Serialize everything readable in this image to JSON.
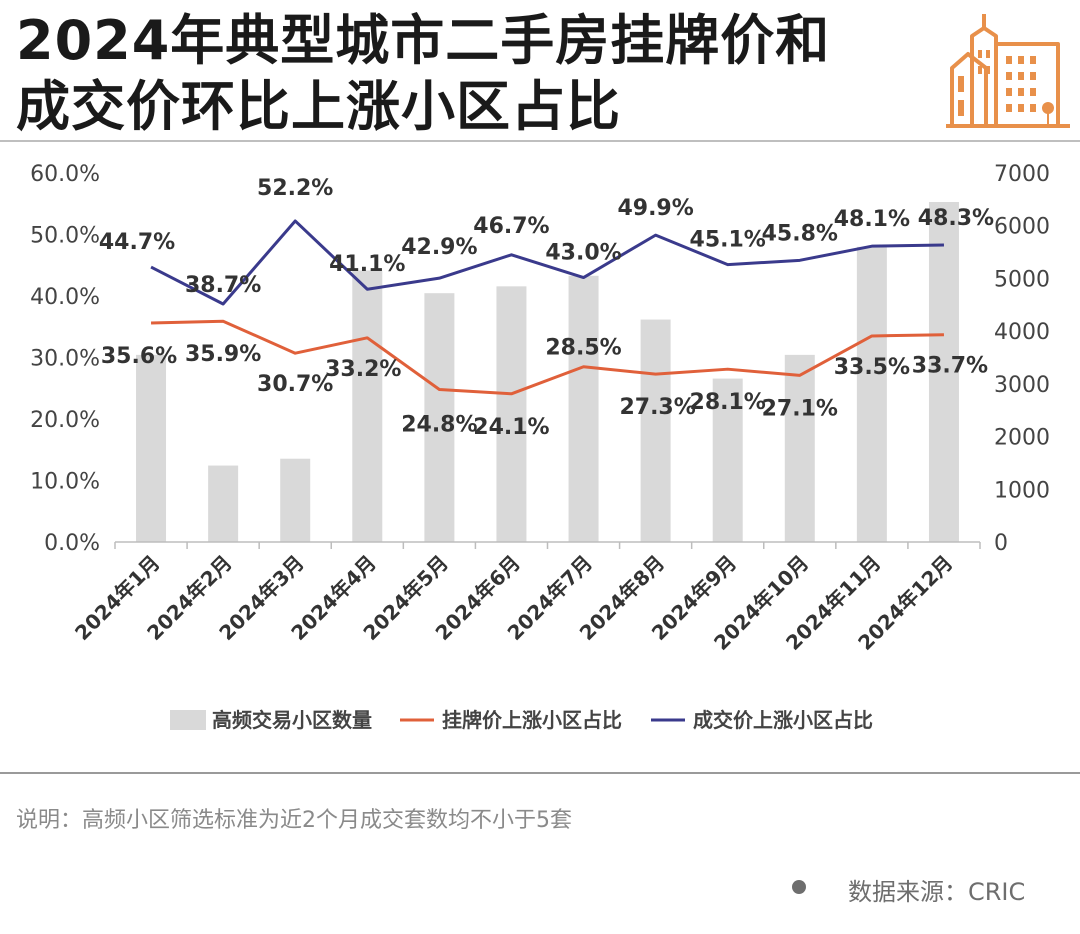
{
  "header": {
    "title_line1": "2024年典型城市二手房挂牌价和",
    "title_line2": "成交价环比上涨小区占比"
  },
  "logo": {
    "icon": "building-icon",
    "color": "#E8904A"
  },
  "note": "说明：高频小区筛选标准为近2个月成交套数均不小于5套",
  "source": "数据来源：CRIC",
  "chart_data": {
    "type": "bar",
    "categories": [
      "2024年1月",
      "2024年2月",
      "2024年3月",
      "2024年4月",
      "2024年5月",
      "2024年6月",
      "2024年7月",
      "2024年8月",
      "2024年9月",
      "2024年10月",
      "2024年11月",
      "2024年12月"
    ],
    "left_axis": {
      "ylim": [
        0,
        60
      ],
      "ticks": [
        "0.0%",
        "10.0%",
        "20.0%",
        "30.0%",
        "40.0%",
        "50.0%",
        "60.0%"
      ]
    },
    "right_axis": {
      "ylim": [
        0,
        7000
      ],
      "ticks": [
        "0",
        "1000",
        "2000",
        "3000",
        "4000",
        "5000",
        "6000",
        "7000"
      ]
    },
    "series": [
      {
        "name": "高频交易小区数量",
        "kind": "bar",
        "axis": "right",
        "color": "#d9d9d9",
        "values": [
          3550,
          1450,
          1580,
          5150,
          4720,
          4850,
          5050,
          4220,
          3100,
          3550,
          5600,
          6450
        ]
      },
      {
        "name": "挂牌价上涨小区占比",
        "kind": "line",
        "axis": "left",
        "color": "#E0603A",
        "values": [
          35.6,
          35.9,
          30.7,
          33.2,
          24.8,
          24.1,
          28.5,
          27.3,
          28.1,
          27.1,
          33.5,
          33.7
        ],
        "labels": [
          "35.6%",
          "35.9%",
          "30.7%",
          "33.2%",
          "24.8%",
          "24.1%",
          "28.5%",
          "27.3%",
          "28.1%",
          "27.1%",
          "33.5%",
          "33.7%"
        ]
      },
      {
        "name": "成交价上涨小区占比",
        "kind": "line",
        "axis": "left",
        "color": "#3A3A8C",
        "values": [
          44.7,
          38.7,
          52.2,
          41.1,
          42.9,
          46.7,
          43.0,
          49.9,
          45.1,
          45.8,
          48.1,
          48.3
        ],
        "labels": [
          "44.7%",
          "38.7%",
          "52.2%",
          "41.1%",
          "42.9%",
          "46.7%",
          "43.0%",
          "49.9%",
          "45.1%",
          "45.8%",
          "48.1%",
          "48.3%"
        ]
      }
    ],
    "legend_position": "bottom",
    "grid": false
  }
}
